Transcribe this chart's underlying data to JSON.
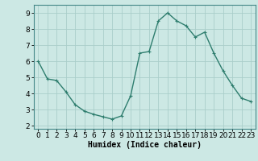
{
  "x": [
    0,
    1,
    2,
    3,
    4,
    5,
    6,
    7,
    8,
    9,
    10,
    11,
    12,
    13,
    14,
    15,
    16,
    17,
    18,
    19,
    20,
    21,
    22,
    23
  ],
  "y": [
    6.0,
    4.9,
    4.8,
    4.1,
    3.3,
    2.9,
    2.7,
    2.55,
    2.4,
    2.6,
    3.85,
    6.5,
    6.6,
    8.5,
    9.0,
    8.5,
    8.2,
    7.5,
    7.8,
    6.5,
    5.4,
    4.5,
    3.7,
    3.5
  ],
  "line_color": "#2e7d6e",
  "marker": "+",
  "marker_size": 3,
  "linewidth": 1.0,
  "background_color": "#cce8e4",
  "grid_color": "#aaceca",
  "xlabel": "Humidex (Indice chaleur)",
  "xlim": [
    -0.5,
    23.5
  ],
  "ylim": [
    1.8,
    9.5
  ],
  "yticks": [
    2,
    3,
    4,
    5,
    6,
    7,
    8,
    9
  ],
  "xticks": [
    0,
    1,
    2,
    3,
    4,
    5,
    6,
    7,
    8,
    9,
    10,
    11,
    12,
    13,
    14,
    15,
    16,
    17,
    18,
    19,
    20,
    21,
    22,
    23
  ],
  "xlabel_fontsize": 7,
  "tick_fontsize": 6.5
}
